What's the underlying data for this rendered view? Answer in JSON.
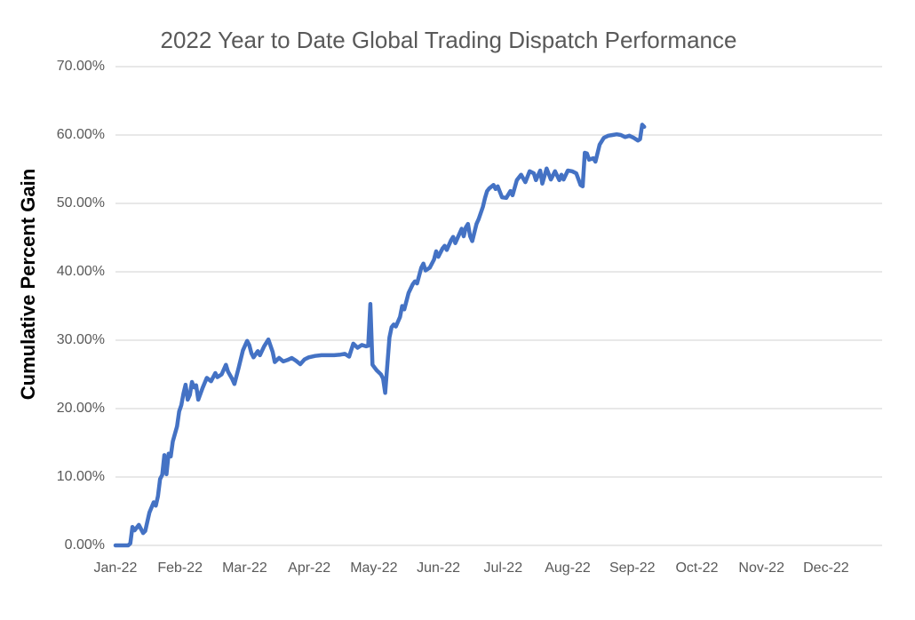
{
  "chart_data": {
    "type": "line",
    "title": "2022 Year to Date Global Trading Dispatch Performance",
    "ylabel": "Cumulative Percent Gain",
    "xlabel": "",
    "x_tick_labels": [
      "Jan-22",
      "Feb-22",
      "Mar-22",
      "Apr-22",
      "May-22",
      "Jun-22",
      "Jul-22",
      "Aug-22",
      "Sep-22",
      "Oct-22",
      "Nov-22",
      "Dec-22"
    ],
    "y_tick_labels": [
      "0.00%",
      "10.00%",
      "20.00%",
      "30.00%",
      "40.00%",
      "50.00%",
      "60.00%",
      "70.00%"
    ],
    "ylim": [
      0,
      70
    ],
    "y_tick_step": 10,
    "grid": "horizontal-only",
    "legend": "none",
    "x_axis_note": "daily cumulative gain, data runs Jan 1 2022 to mid-Sep 2022; Oct-Dec empty",
    "colors": {
      "line": "#4472C4",
      "title": "#595959",
      "tick_labels": "#595959",
      "axis_title": "#000000",
      "gridline": "#D9D9D9",
      "background": "#FFFFFF"
    },
    "series": [
      {
        "name": "Cumulative Percent Gain",
        "color": "#4472C4",
        "x_unit": "day_of_year_2022",
        "points": [
          [
            0,
            0
          ],
          [
            3,
            0
          ],
          [
            6,
            0
          ],
          [
            7,
            0.3
          ],
          [
            8,
            2.7
          ],
          [
            9,
            2.2
          ],
          [
            11,
            3.0
          ],
          [
            13,
            1.8
          ],
          [
            14,
            2.1
          ],
          [
            16,
            4.8
          ],
          [
            18,
            6.3
          ],
          [
            19,
            5.8
          ],
          [
            20,
            7.2
          ],
          [
            21,
            9.7
          ],
          [
            22,
            10.3
          ],
          [
            23,
            13.2
          ],
          [
            24,
            10.4
          ],
          [
            25,
            13.4
          ],
          [
            26,
            13.0
          ],
          [
            27,
            15.2
          ],
          [
            29,
            17.4
          ],
          [
            30,
            19.6
          ],
          [
            31,
            20.5
          ],
          [
            32,
            22.2
          ],
          [
            33,
            23.5
          ],
          [
            34,
            21.3
          ],
          [
            35,
            22.0
          ],
          [
            36,
            23.9
          ],
          [
            37,
            23.1
          ],
          [
            38,
            23.4
          ],
          [
            39,
            21.3
          ],
          [
            41,
            23.0
          ],
          [
            43,
            24.5
          ],
          [
            45,
            24.0
          ],
          [
            47,
            25.2
          ],
          [
            48,
            24.6
          ],
          [
            50,
            25.0
          ],
          [
            52,
            26.4
          ],
          [
            53,
            25.4
          ],
          [
            55,
            24.3
          ],
          [
            56,
            23.6
          ],
          [
            58,
            26.0
          ],
          [
            60,
            28.5
          ],
          [
            62,
            29.9
          ],
          [
            63,
            29.3
          ],
          [
            64,
            28.1
          ],
          [
            65,
            27.5
          ],
          [
            67,
            28.4
          ],
          [
            68,
            27.8
          ],
          [
            70,
            29.1
          ],
          [
            72,
            30.1
          ],
          [
            74,
            28.3
          ],
          [
            75,
            26.8
          ],
          [
            77,
            27.4
          ],
          [
            79,
            26.9
          ],
          [
            81,
            27.1
          ],
          [
            83,
            27.4
          ],
          [
            85,
            27.0
          ],
          [
            87,
            26.5
          ],
          [
            89,
            27.2
          ],
          [
            91,
            27.5
          ],
          [
            94,
            27.7
          ],
          [
            97,
            27.8
          ],
          [
            100,
            27.8
          ],
          [
            103,
            27.8
          ],
          [
            106,
            27.9
          ],
          [
            108,
            28.0
          ],
          [
            110,
            27.6
          ],
          [
            112,
            29.5
          ],
          [
            114,
            28.9
          ],
          [
            116,
            29.3
          ],
          [
            118,
            29.1
          ],
          [
            119,
            29.2
          ],
          [
            120,
            35.3
          ],
          [
            121,
            26.4
          ],
          [
            123,
            25.6
          ],
          [
            125,
            25.0
          ],
          [
            126,
            24.4
          ],
          [
            127,
            22.3
          ],
          [
            129,
            30.4
          ],
          [
            130,
            31.9
          ],
          [
            131,
            32.3
          ],
          [
            132,
            32.0
          ],
          [
            134,
            33.4
          ],
          [
            135,
            35.0
          ],
          [
            136,
            34.5
          ],
          [
            138,
            36.9
          ],
          [
            140,
            38.2
          ],
          [
            141,
            38.6
          ],
          [
            142,
            38.3
          ],
          [
            144,
            40.6
          ],
          [
            145,
            41.2
          ],
          [
            146,
            40.2
          ],
          [
            148,
            40.6
          ],
          [
            150,
            41.8
          ],
          [
            151,
            43.0
          ],
          [
            152,
            42.2
          ],
          [
            154,
            43.4
          ],
          [
            155,
            43.8
          ],
          [
            156,
            43.2
          ],
          [
            158,
            44.6
          ],
          [
            159,
            45.1
          ],
          [
            160,
            44.2
          ],
          [
            162,
            45.6
          ],
          [
            163,
            46.3
          ],
          [
            164,
            45.2
          ],
          [
            165,
            46.5
          ],
          [
            166,
            47.0
          ],
          [
            167,
            45.2
          ],
          [
            168,
            44.5
          ],
          [
            170,
            47.0
          ],
          [
            171,
            47.7
          ],
          [
            173,
            49.5
          ],
          [
            174,
            50.8
          ],
          [
            175,
            51.8
          ],
          [
            176,
            52.2
          ],
          [
            178,
            52.7
          ],
          [
            179,
            52.1
          ],
          [
            180,
            52.5
          ],
          [
            182,
            50.9
          ],
          [
            184,
            50.8
          ],
          [
            186,
            51.8
          ],
          [
            187,
            51.2
          ],
          [
            189,
            53.4
          ],
          [
            191,
            54.2
          ],
          [
            193,
            53.1
          ],
          [
            195,
            54.7
          ],
          [
            197,
            54.4
          ],
          [
            198,
            53.4
          ],
          [
            200,
            54.8
          ],
          [
            201,
            52.9
          ],
          [
            203,
            55.1
          ],
          [
            205,
            53.5
          ],
          [
            207,
            54.7
          ],
          [
            209,
            53.4
          ],
          [
            210,
            54.2
          ],
          [
            211,
            53.5
          ],
          [
            213,
            54.8
          ],
          [
            215,
            54.7
          ],
          [
            217,
            54.4
          ],
          [
            219,
            52.7
          ],
          [
            220,
            52.5
          ],
          [
            221,
            57.4
          ],
          [
            222,
            57.3
          ],
          [
            223,
            56.4
          ],
          [
            225,
            56.6
          ],
          [
            226,
            56.1
          ],
          [
            228,
            58.6
          ],
          [
            230,
            59.6
          ],
          [
            232,
            59.9
          ],
          [
            234,
            60.0
          ],
          [
            236,
            60.1
          ],
          [
            238,
            60.0
          ],
          [
            240,
            59.7
          ],
          [
            242,
            59.9
          ],
          [
            244,
            59.6
          ],
          [
            246,
            59.2
          ],
          [
            247,
            59.4
          ],
          [
            248,
            61.5
          ],
          [
            249,
            61.2
          ]
        ]
      }
    ]
  }
}
